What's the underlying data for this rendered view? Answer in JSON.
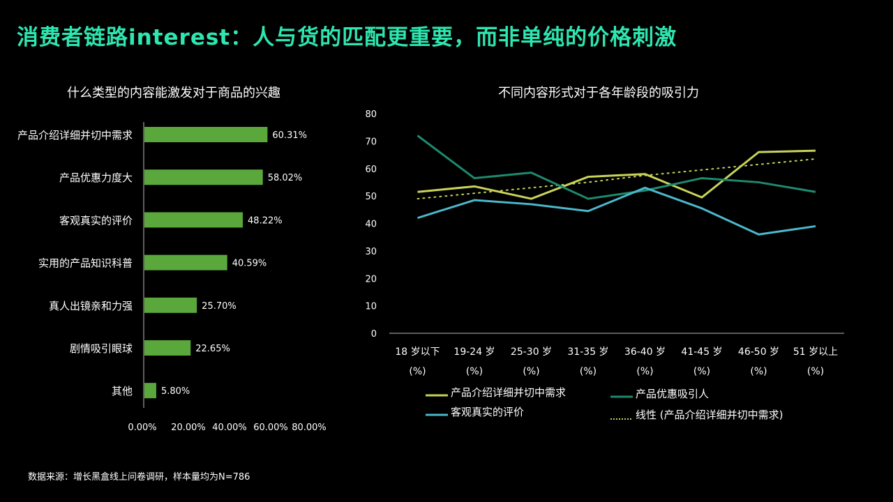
{
  "page_title": "消费者链路interest：人与货的匹配更重要，而非单纯的价格刺激",
  "source_note": "数据来源：增长黑盒线上问卷调研，样本量均为N=786",
  "colors": {
    "accent": "#2ee6b0",
    "bar": "#5aa83c",
    "series_intro": "#c8d45a",
    "series_promo": "#1e8a6e",
    "series_review": "#4bb8cc",
    "trend": "#c8d45a"
  },
  "chart_data": [
    {
      "type": "bar",
      "orientation": "horizontal",
      "title": "什么类型的内容能激发对于商品的兴趣",
      "categories": [
        "产品介绍详细并切中需求",
        "产品优惠力度大",
        "客观真实的评价",
        "实用的产品知识科普",
        "真人出镜亲和力强",
        "剧情吸引眼球",
        "其他"
      ],
      "values": [
        60.31,
        58.02,
        48.22,
        40.59,
        25.7,
        22.65,
        5.8
      ],
      "value_labels": [
        "60.31%",
        "58.02%",
        "48.22%",
        "40.59%",
        "25.70%",
        "22.65%",
        "5.80%"
      ],
      "x_ticks": [
        "0.00%",
        "20.00%",
        "40.00%",
        "60.00%",
        "80.00%"
      ],
      "xlim": [
        0,
        80
      ]
    },
    {
      "type": "line",
      "title": "不同内容形式对于各年龄段的吸引力",
      "categories": [
        [
          "18 岁以下",
          "(%)"
        ],
        [
          "19-24 岁",
          "(%)"
        ],
        [
          "25-30 岁",
          "(%)"
        ],
        [
          "31-35 岁",
          "(%)"
        ],
        [
          "36-40 岁",
          "(%)"
        ],
        [
          "41-45 岁",
          "(%)"
        ],
        [
          "46-50 岁",
          "(%)"
        ],
        [
          "51 岁以上",
          "(%)"
        ]
      ],
      "y_ticks": [
        0,
        10,
        20,
        30,
        40,
        50,
        60,
        70,
        80
      ],
      "ylim": [
        0,
        80
      ],
      "series": [
        {
          "name": "产品介绍详细并切中需求",
          "values": [
            51.5,
            53.5,
            49,
            57,
            58,
            49.5,
            66,
            66.5
          ]
        },
        {
          "name": "产品优惠吸引人",
          "values": [
            72,
            56.5,
            58.5,
            49,
            52,
            56.5,
            55,
            51.5
          ]
        },
        {
          "name": "客观真实的评价",
          "values": [
            42,
            48.5,
            47,
            44.5,
            53,
            45.5,
            36,
            39
          ]
        }
      ],
      "trendline": {
        "name": "线性 (产品介绍详细并切中需求)",
        "values": [
          49,
          51,
          53,
          55,
          57.5,
          59.5,
          61.5,
          63.5
        ]
      },
      "legend": "bottom"
    }
  ]
}
